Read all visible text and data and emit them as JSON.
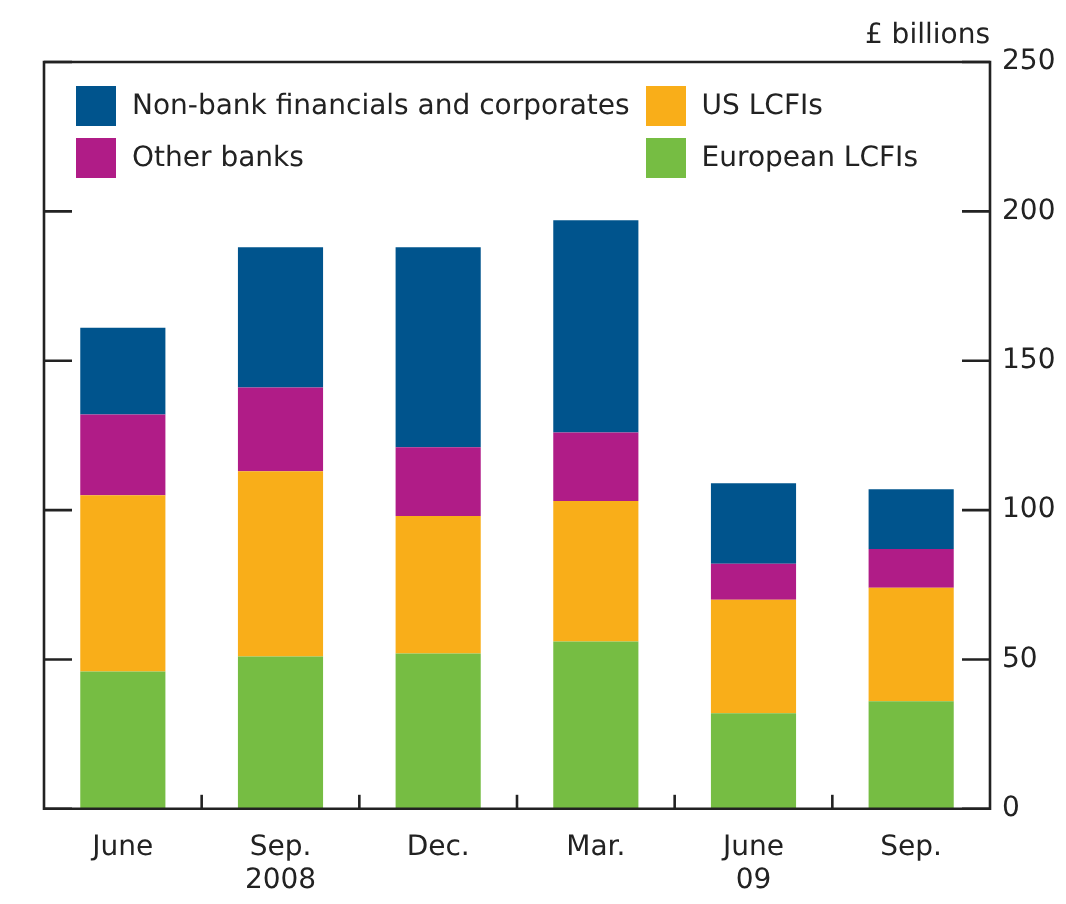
{
  "chart_data": {
    "type": "bar",
    "stacked": true,
    "ylabel": "£ billions",
    "categories": [
      "June",
      "Sep.\n2008",
      "Dec.",
      "Mar.",
      "June\n09",
      "Sep."
    ],
    "series": [
      {
        "name": "European LCFIs",
        "color": "#76bd43",
        "values": [
          46,
          51,
          52,
          56,
          32,
          36
        ]
      },
      {
        "name": "US LCFIs",
        "color": "#f9ae19",
        "values": [
          59,
          62,
          46,
          47,
          38,
          38
        ]
      },
      {
        "name": "Other banks",
        "color": "#b01c87",
        "values": [
          27,
          28,
          23,
          23,
          12,
          13
        ]
      },
      {
        "name": "Non-bank financials and corporates",
        "color": "#00548d",
        "values": [
          29,
          47,
          67,
          71,
          27,
          20
        ]
      }
    ],
    "ylim": [
      0,
      250
    ],
    "yticks": [
      0,
      50,
      100,
      150,
      200,
      250
    ],
    "grid": false,
    "legend": "top left"
  }
}
